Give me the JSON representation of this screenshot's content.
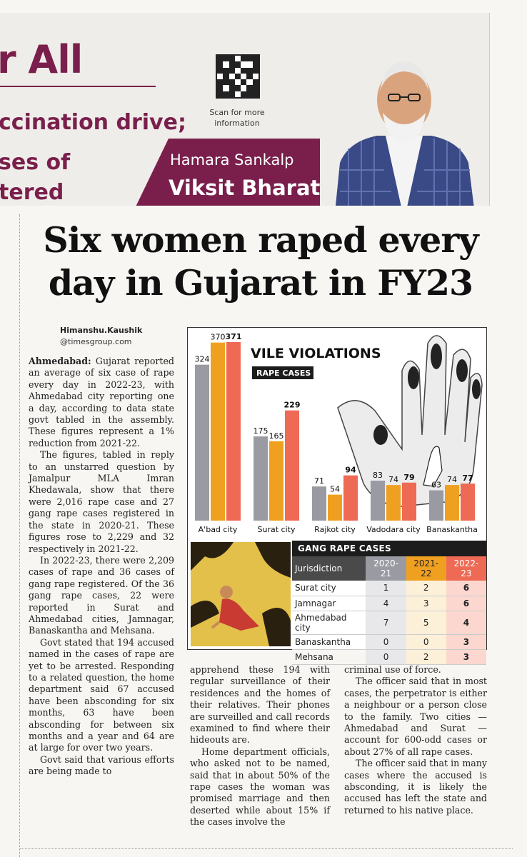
{
  "ad": {
    "headline_fragment": "r All",
    "line2": "ccination drive;",
    "line3": "ses of",
    "line4": "tered",
    "scan_text": "Scan for more information",
    "tagline1": "Hamara Sankalp",
    "tagline2": "Viksit Bharat",
    "brand_color": "#7a1f4c"
  },
  "article": {
    "headline": "Six women raped every day in Gujarat in FY23",
    "author": "Himanshu.Kaushik",
    "author_email": "@timesgroup.com",
    "dateline": "Ahmedabad:",
    "col1": [
      "Gujarat reported an average of six case of rape every day in 2022-23, with Ahmedabad city reporting one a day, according to data state govt tabled in the assembly. These figures represent a 1% reduction from 2021-22.",
      "The figures, tabled in reply to an unstarred question by Jamalpur MLA Imran Khedawala, show that there were 2,016 rape case and 27 gang rape cases registered in the state in 2020-21. These figures rose to 2,229 and 32 respectively in 2021-22.",
      "In 2022-23, there were 2,209 cases of rape and 36 cases of gang rape registered. Of the 36 gang rape cases, 22 were reported in Surat and Ahmedabad cities, Jamnagar, Banaskantha and Mehsana.",
      "Govt stated that 194 accused named in the cases of rape are yet to be arrested. Responding to a related question, the home department said 67 accused have been absconding for six months, 63 have been absconding for between six months and a year and 64 are at large for over two years.",
      "Govt said that various efforts are being made to"
    ],
    "col2": [
      "apprehend these 194 with regular surveillance of their residences and the homes of their relatives. Their phones are surveilled and call records examined to find where their hideouts are.",
      "Home department officials, who asked not to be named, said that in about 50% of the rape cases the woman was promised marriage and then deserted while about 15% if the cases involve the"
    ],
    "col3": [
      "criminal use of force.",
      "The officer said that in most cases, the perpetrator is either a neighbour or a person close to the family. Two cities — Ahmedabad and Surat — account for 600-odd cases or about 27% of all rape cases.",
      "The officer said that in many cases where the accused is absconding, it is likely the accused has left the state and returned to his native place."
    ]
  },
  "chart_data": {
    "type": "bar",
    "title": "VILE VIOLATIONS",
    "subtitle": "RAPE CASES",
    "categories": [
      "A'bad city",
      "Surat city",
      "Rajkot city",
      "Vadodara city",
      "Banaskantha"
    ],
    "series": [
      {
        "values": [
          324,
          175,
          71,
          83,
          63
        ],
        "color": "#9a9aa3"
      },
      {
        "values": [
          370,
          165,
          54,
          74,
          74
        ],
        "color": "#f0a020"
      },
      {
        "values": [
          371,
          229,
          94,
          79,
          77
        ],
        "color": "#ee6a55"
      }
    ],
    "ylim": [
      0,
      371
    ]
  },
  "gang_table": {
    "title": "GANG RAPE CASES",
    "headers": [
      "Jurisdiction",
      "2020-21",
      "2021-22",
      "2022-23"
    ],
    "rows": [
      [
        "Surat city",
        "1",
        "2",
        "6"
      ],
      [
        "Jamnagar",
        "4",
        "3",
        "6"
      ],
      [
        "Ahmedabad city",
        "7",
        "5",
        "4"
      ],
      [
        "Banaskantha",
        "0",
        "0",
        "3"
      ],
      [
        "Mehsana",
        "0",
        "2",
        "3"
      ]
    ]
  }
}
